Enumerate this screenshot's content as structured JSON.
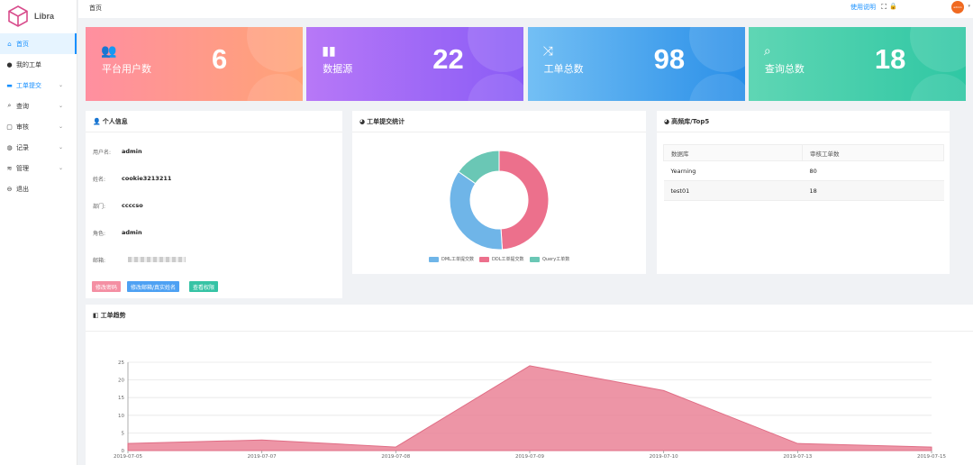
{
  "app": {
    "name": "Libra"
  },
  "sidebar": {
    "items": [
      {
        "label": "首页",
        "icon": "home-icon"
      },
      {
        "label": "我的工单",
        "icon": "user-icon"
      },
      {
        "label": "工单提交",
        "icon": "folder-icon"
      },
      {
        "label": "查询",
        "icon": "search-icon"
      },
      {
        "label": "审核",
        "icon": "edit-icon"
      },
      {
        "label": "记录",
        "icon": "globe-icon"
      },
      {
        "label": "管理",
        "icon": "stack-icon"
      },
      {
        "label": "退出",
        "icon": "logout-icon"
      }
    ]
  },
  "header": {
    "breadcrumb": "首页",
    "help_label": "使用说明",
    "avatar_text": "admin"
  },
  "stats": [
    {
      "label": "平台用户数",
      "value": "6",
      "icon": "users-icon",
      "color_from": "#ff8fa0",
      "color_to": "#ffa376"
    },
    {
      "label": "数据源",
      "value": "22",
      "icon": "bar-chart-icon",
      "color_from": "#b778f7",
      "color_to": "#8a5cf6"
    },
    {
      "label": "工单总数",
      "value": "98",
      "icon": "shuffle-icon",
      "color_from": "#73bff4",
      "color_to": "#2a8fe8"
    },
    {
      "label": "查询总数",
      "value": "18",
      "icon": "search-icon",
      "color_from": "#5fd6b4",
      "color_to": "#2fc7a3"
    }
  ],
  "profile": {
    "title": "个人信息",
    "fields": [
      {
        "label": "用户名:",
        "value": "admin"
      },
      {
        "label": "姓名:",
        "value": "cookie3213211"
      },
      {
        "label": "部门:",
        "value": "ccccso"
      },
      {
        "label": "角色:",
        "value": "admin"
      },
      {
        "label": "邮箱:",
        "value": ""
      }
    ],
    "buttons": [
      {
        "label": "修改密码",
        "color": "#f48fa3"
      },
      {
        "label": "修改邮箱/真实姓名",
        "color": "#4ea1f3"
      },
      {
        "label": "查看权限",
        "color": "#36c3a5"
      }
    ]
  },
  "stats_panel": {
    "title": "工单提交统计"
  },
  "top_panel": {
    "title": "高频库/Top5",
    "columns": [
      "数据库",
      "审核工单数"
    ],
    "rows": [
      [
        "Yearning",
        "80"
      ],
      [
        "test01",
        "18"
      ]
    ]
  },
  "trend_panel": {
    "title": "工单趋势"
  },
  "chart_data": [
    {
      "type": "pie",
      "variant": "donut",
      "labels": [
        "DML工单提交数",
        "DDL工单提交数",
        "Query工单数"
      ],
      "values": [
        35,
        48,
        15
      ],
      "colors": [
        "#6fb5e8",
        "#ec708c",
        "#6ac7b5"
      ],
      "legend": "bottom"
    },
    {
      "type": "area",
      "categories": [
        "2019-07-05",
        "2019-07-07",
        "2019-07-08",
        "2019-07-09",
        "2019-07-10",
        "2019-07-13",
        "2019-07-15"
      ],
      "series": [
        {
          "values": [
            2,
            3,
            1,
            24,
            17,
            2,
            1
          ]
        }
      ],
      "ylim": [
        0,
        25
      ],
      "yticks": [
        "0",
        "5",
        "10",
        "15",
        "20",
        "25"
      ],
      "grid": true,
      "color": "#ea8296"
    }
  ]
}
